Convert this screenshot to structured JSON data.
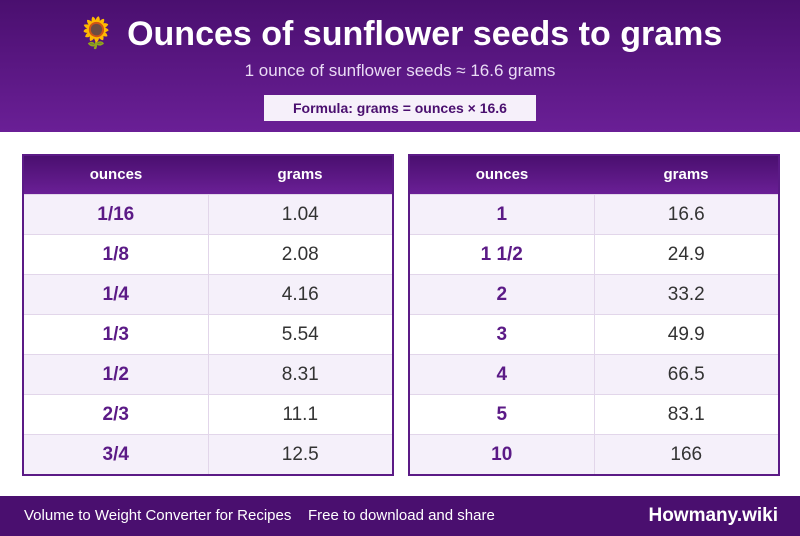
{
  "header": {
    "icon": "sunflower-icon",
    "title": "Ounces of sunflower seeds to grams",
    "subtitle": "1 ounce of sunflower seeds ≈ 16.6 grams",
    "formula": "Formula: grams = ounces × 16.6"
  },
  "tables": [
    {
      "col_ounces": "ounces",
      "col_grams": "grams",
      "rows": [
        {
          "ounces": "1/16",
          "grams": "1.04"
        },
        {
          "ounces": "1/8",
          "grams": "2.08"
        },
        {
          "ounces": "1/4",
          "grams": "4.16"
        },
        {
          "ounces": "1/3",
          "grams": "5.54"
        },
        {
          "ounces": "1/2",
          "grams": "8.31"
        },
        {
          "ounces": "2/3",
          "grams": "11.1"
        },
        {
          "ounces": "3/4",
          "grams": "12.5"
        }
      ]
    },
    {
      "col_ounces": "ounces",
      "col_grams": "grams",
      "rows": [
        {
          "ounces": "1",
          "grams": "16.6"
        },
        {
          "ounces": "1 1/2",
          "grams": "24.9"
        },
        {
          "ounces": "2",
          "grams": "33.2"
        },
        {
          "ounces": "3",
          "grams": "49.9"
        },
        {
          "ounces": "4",
          "grams": "66.5"
        },
        {
          "ounces": "5",
          "grams": "83.1"
        },
        {
          "ounces": "10",
          "grams": "166"
        }
      ]
    }
  ],
  "footer": {
    "left_text": "Volume to Weight Converter for Recipes",
    "middle_text": "Free to download and share",
    "brand": "Howmany.wiki"
  },
  "colors": {
    "header_bg": "#4a0f6f",
    "accent": "#5b1a86",
    "row_alt": "#f5f0fa"
  }
}
